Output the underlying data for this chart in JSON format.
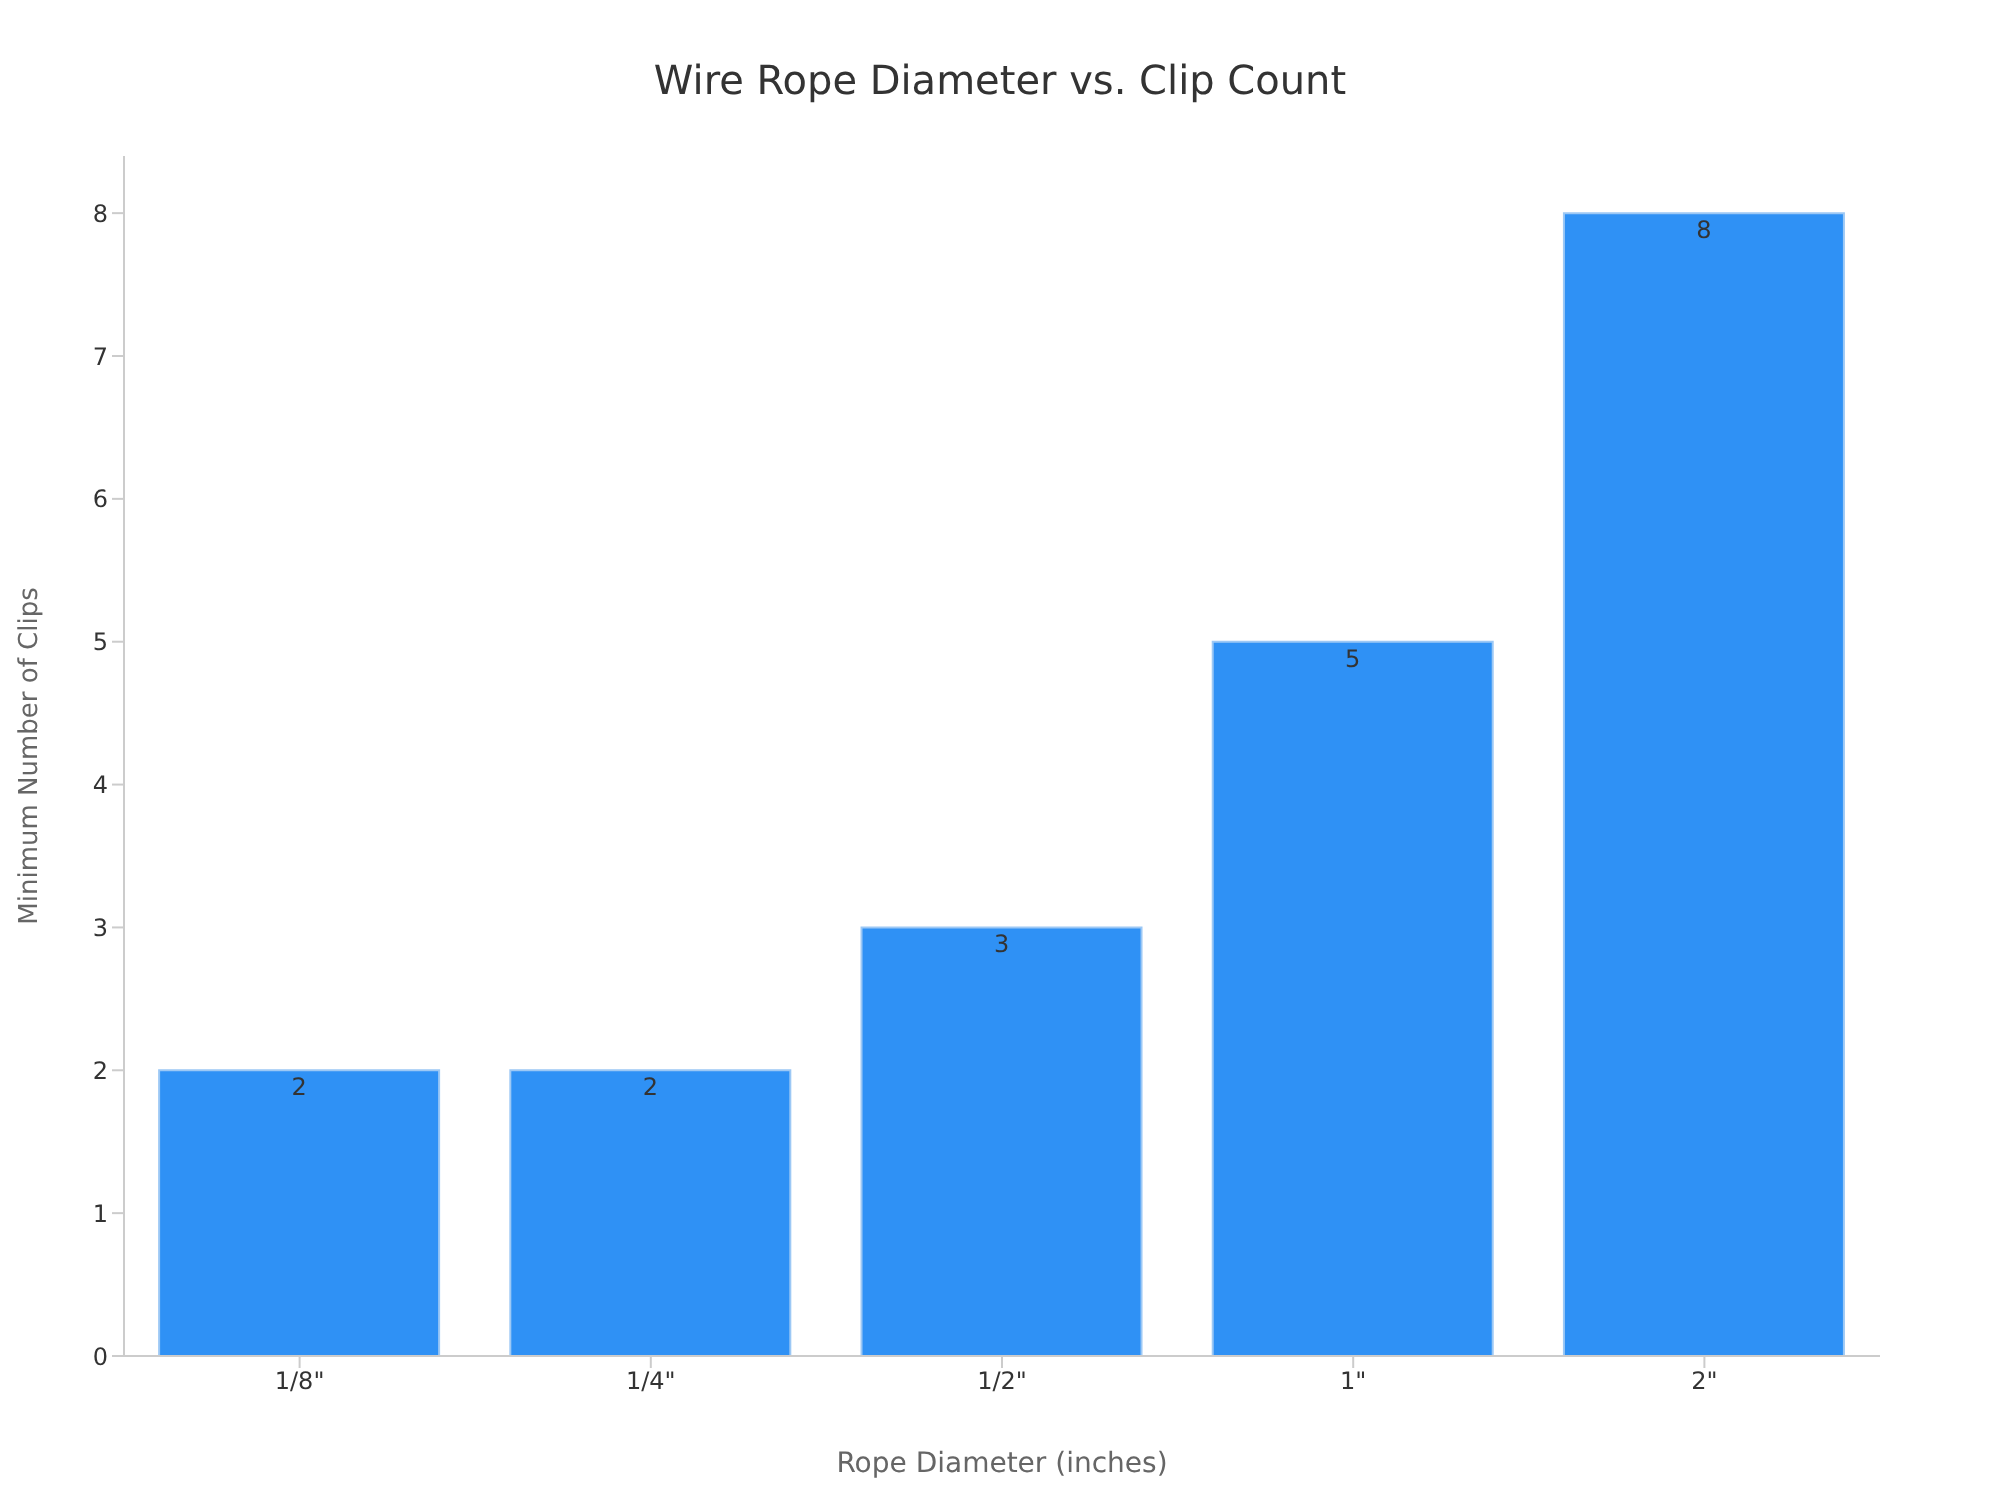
{
  "chart_data": {
    "type": "bar",
    "title": "Wire Rope Diameter vs. Clip Count",
    "xlabel": "Rope Diameter (inches)",
    "ylabel": "Minimum Number of Clips",
    "categories": [
      "1/8\"",
      "1/4\"",
      "1/2\"",
      "1\"",
      "2\""
    ],
    "values": [
      2,
      2,
      3,
      5,
      8
    ],
    "color": "#2f91f5",
    "ylim": [
      0,
      8.4
    ],
    "yticks": [
      0,
      1,
      2,
      3,
      4,
      5,
      6,
      7,
      8
    ],
    "grid": false,
    "data_labels": true
  }
}
